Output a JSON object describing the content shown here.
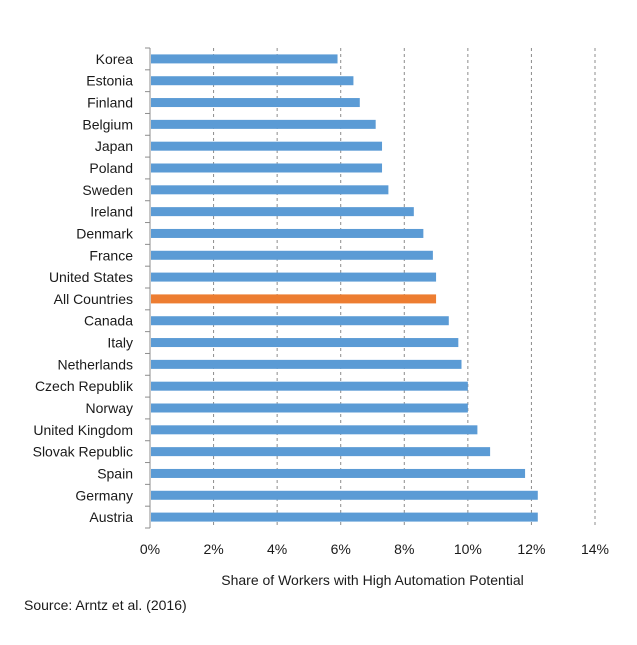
{
  "chart_data": {
    "type": "bar",
    "orientation": "horizontal",
    "categories": [
      "Korea",
      "Estonia",
      "Finland",
      "Belgium",
      "Japan",
      "Poland",
      "Sweden",
      "Ireland",
      "Denmark",
      "France",
      "United States",
      "All Countries",
      "Canada",
      "Italy",
      "Netherlands",
      "Czech Republik",
      "Norway",
      "United Kingdom",
      "Slovak Republic",
      "Spain",
      "Germany",
      "Austria"
    ],
    "values": [
      5.9,
      6.4,
      6.6,
      7.1,
      7.3,
      7.3,
      7.5,
      8.3,
      8.6,
      8.9,
      9.0,
      9.0,
      9.4,
      9.7,
      9.8,
      10.0,
      10.0,
      10.3,
      10.7,
      11.8,
      12.2,
      12.2
    ],
    "highlight_category": "All Countries",
    "colors": {
      "bar": "#5b9bd5",
      "highlight": "#ed7d31",
      "grid": "#8c8c8c",
      "axis": "#8c8c8c"
    },
    "xlim": [
      0,
      14
    ],
    "x_ticks": [
      0,
      2,
      4,
      6,
      8,
      10,
      12,
      14
    ],
    "x_tick_labels": [
      "0%",
      "2%",
      "4%",
      "6%",
      "8%",
      "10%",
      "12%",
      "14%"
    ],
    "xlabel": "Share of Workers with High Automation Potential",
    "ylabel": "",
    "title": "",
    "grid": "vertical dashed",
    "legend": "none"
  },
  "source_note": "Source: Arntz et al. (2016)"
}
